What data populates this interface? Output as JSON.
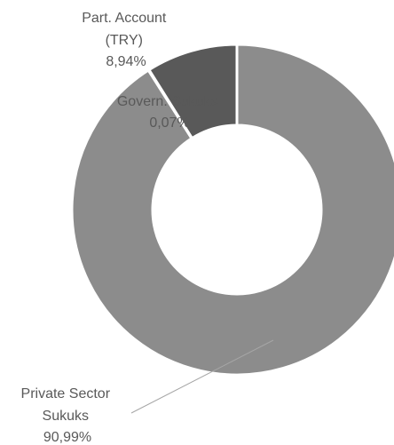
{
  "chart_data": {
    "type": "pie",
    "variant": "donut",
    "slices": [
      {
        "label_lines": [
          "Private Sector",
          "Sukuks"
        ],
        "value_label": "90,99%",
        "value": 90.99,
        "color": "#8c8c8c"
      },
      {
        "label_lines": [
          "Govern. Sukuks"
        ],
        "value_label": "0,07%",
        "value": 0.07,
        "color": "#8c8c8c"
      },
      {
        "label_lines": [
          "Part. Account",
          "(TRY)"
        ],
        "value_label": "8,94%",
        "value": 8.94,
        "color": "#595959"
      }
    ],
    "legend": "none"
  }
}
